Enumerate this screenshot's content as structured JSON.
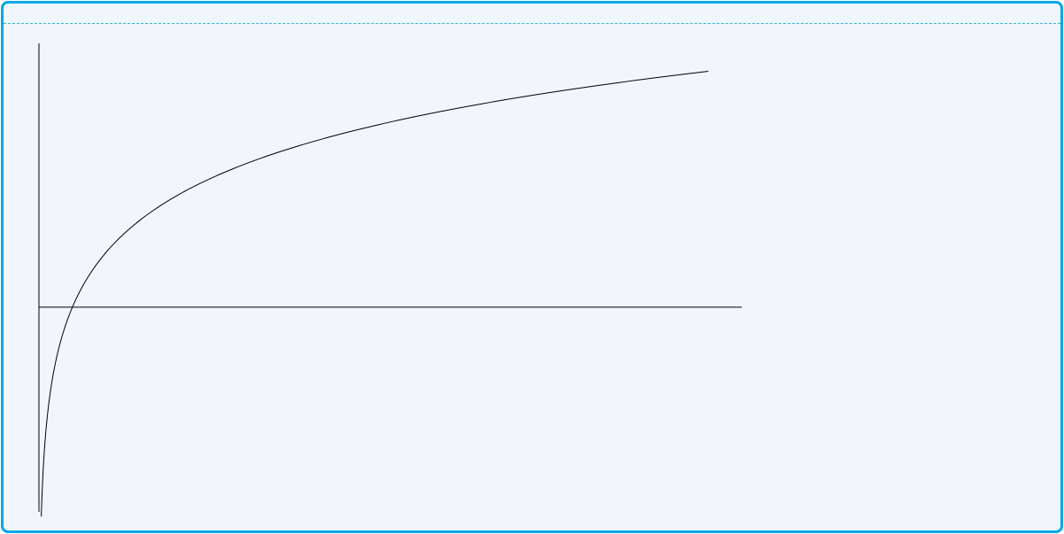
{
  "colors": {
    "frame_border": "#00a8e6",
    "frame_background": "#eff7fc",
    "dashed_rule": "#33b5cc",
    "curve": "#000000",
    "axes": "#000000"
  },
  "chart_data": {
    "type": "line",
    "function": "log",
    "title": "",
    "xlabel": "",
    "ylabel": "",
    "x_range": [
      0,
      21
    ],
    "y_range": [
      -2.6,
      3.35
    ],
    "grid": false,
    "legend": "none",
    "series": [
      {
        "points": [
          [
            0.07,
            -2.6
          ],
          [
            0.2,
            -1.61
          ],
          [
            0.5,
            -0.69
          ],
          [
            1,
            0
          ],
          [
            2,
            0.69
          ],
          [
            3,
            1.1
          ],
          [
            4,
            1.39
          ],
          [
            6,
            1.79
          ],
          [
            8,
            2.08
          ],
          [
            10,
            2.3
          ],
          [
            12,
            2.48
          ],
          [
            14,
            2.64
          ],
          [
            16,
            2.77
          ],
          [
            18,
            2.89
          ],
          [
            20,
            3.0
          ]
        ]
      }
    ]
  }
}
